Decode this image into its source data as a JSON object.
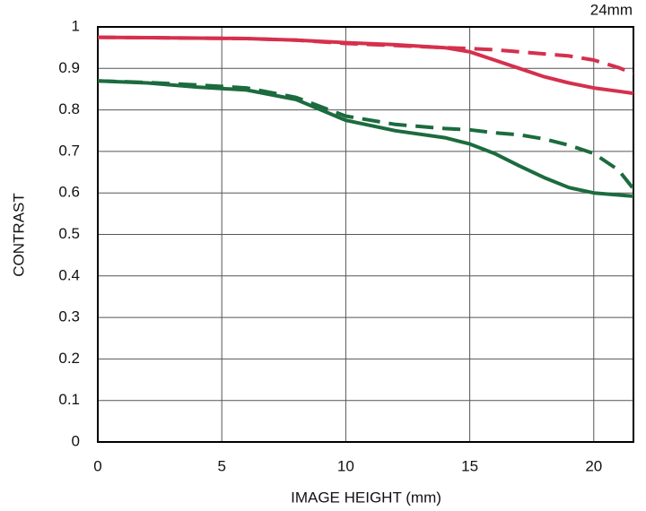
{
  "chart_data": {
    "type": "line",
    "title": "24mm",
    "xlabel": "IMAGE HEIGHT (mm)",
    "ylabel": "CONTRAST",
    "x": [
      0,
      2,
      4,
      6,
      8,
      10,
      12,
      14,
      15,
      16,
      17,
      18,
      19,
      20,
      21,
      21.6
    ],
    "series": [
      {
        "color": "#d5304d",
        "dashed": false,
        "values": [
          0.975,
          0.974,
          0.973,
          0.972,
          0.968,
          0.962,
          0.957,
          0.95,
          0.94,
          0.92,
          0.9,
          0.88,
          0.865,
          0.853,
          0.845,
          0.84
        ]
      },
      {
        "color": "#d5304d",
        "dashed": true,
        "values": [
          0.975,
          0.974,
          0.973,
          0.972,
          0.968,
          0.96,
          0.955,
          0.95,
          0.948,
          0.945,
          0.94,
          0.935,
          0.93,
          0.92,
          0.902,
          0.888
        ]
      },
      {
        "color": "#1c6b3e",
        "dashed": false,
        "values": [
          0.87,
          0.865,
          0.855,
          0.848,
          0.825,
          0.775,
          0.75,
          0.733,
          0.718,
          0.695,
          0.665,
          0.637,
          0.613,
          0.6,
          0.595,
          0.592
        ]
      },
      {
        "color": "#1c6b3e",
        "dashed": true,
        "values": [
          0.87,
          0.866,
          0.86,
          0.853,
          0.83,
          0.785,
          0.765,
          0.755,
          0.752,
          0.745,
          0.74,
          0.73,
          0.715,
          0.695,
          0.655,
          0.61
        ]
      }
    ],
    "xlim": [
      0,
      21.6
    ],
    "ylim": [
      0,
      1
    ],
    "xticks": [
      0,
      5,
      10,
      15,
      20
    ],
    "yticks": [
      0,
      0.1,
      0.2,
      0.3,
      0.4,
      0.5,
      0.6,
      0.7,
      0.8,
      0.9,
      1
    ],
    "grid": true
  }
}
